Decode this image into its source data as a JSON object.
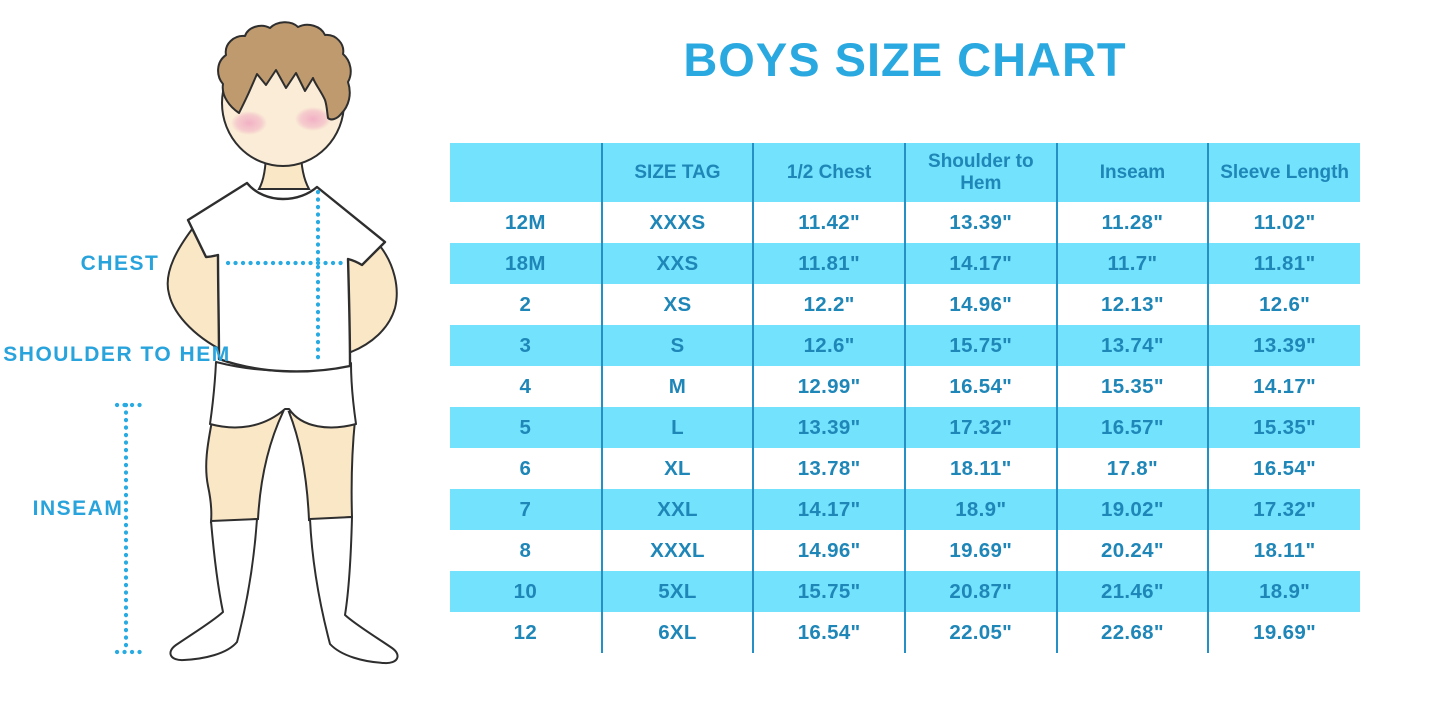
{
  "title": "BOYS SIZE CHART",
  "colors": {
    "title_blue": "#29A9E0",
    "cell_fill_cyan": "#73E2FC",
    "cell_text_blue": "#1F86B8",
    "grid_line_blue": "#2590C5",
    "annotation_blue": "#29ABE2"
  },
  "diagram": {
    "labels": {
      "chest": "CHEST",
      "shoulder_to_hem": "SHOULDER TO HEM",
      "inseam": "INSEAM"
    }
  },
  "chart_data": {
    "type": "table",
    "title": "BOYS SIZE CHART",
    "columns": [
      "",
      "SIZE TAG",
      "1/2 Chest",
      "Shoulder to Hem",
      "Inseam",
      "Sleeve Length"
    ],
    "rows": [
      [
        "12M",
        "XXXS",
        "11.42\"",
        "13.39\"",
        "11.28\"",
        "11.02\""
      ],
      [
        "18M",
        "XXS",
        "11.81\"",
        "14.17\"",
        "11.7\"",
        "11.81\""
      ],
      [
        "2",
        "XS",
        "12.2\"",
        "14.96\"",
        "12.13\"",
        "12.6\""
      ],
      [
        "3",
        "S",
        "12.6\"",
        "15.75\"",
        "13.74\"",
        "13.39\""
      ],
      [
        "4",
        "M",
        "12.99\"",
        "16.54\"",
        "15.35\"",
        "14.17\""
      ],
      [
        "5",
        "L",
        "13.39\"",
        "17.32\"",
        "16.57\"",
        "15.35\""
      ],
      [
        "6",
        "XL",
        "13.78\"",
        "18.11\"",
        "17.8\"",
        "16.54\""
      ],
      [
        "7",
        "XXL",
        "14.17\"",
        "18.9\"",
        "19.02\"",
        "17.32\""
      ],
      [
        "8",
        "XXXL",
        "14.96\"",
        "19.69\"",
        "20.24\"",
        "18.11\""
      ],
      [
        "10",
        "5XL",
        "15.75\"",
        "20.87\"",
        "21.46\"",
        "18.9\""
      ],
      [
        "12",
        "6XL",
        "16.54\"",
        "22.05\"",
        "22.68\"",
        "19.69\""
      ]
    ]
  }
}
